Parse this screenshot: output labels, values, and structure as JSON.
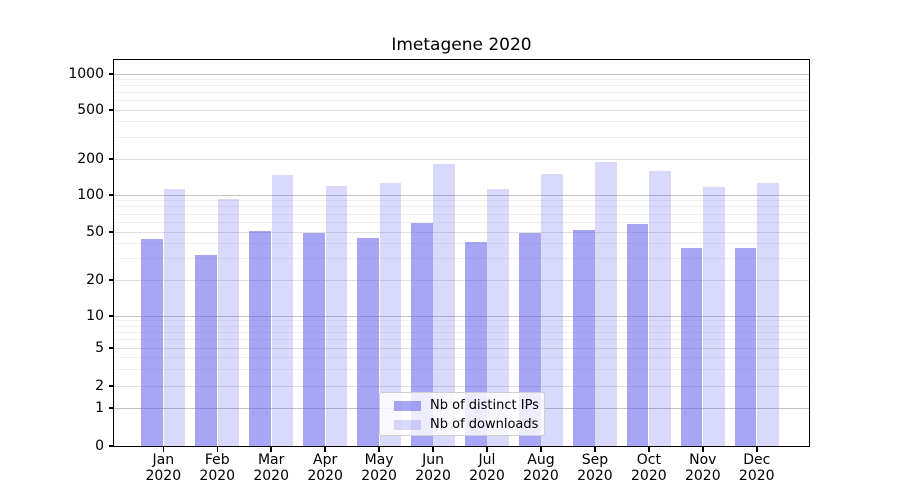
{
  "title": "Imetagene 2020",
  "chart_data": {
    "type": "bar",
    "title": "Imetagene 2020",
    "categories": [
      "Jan",
      "Feb",
      "Mar",
      "Apr",
      "May",
      "Jun",
      "Jul",
      "Aug",
      "Sep",
      "Oct",
      "Nov",
      "Dec"
    ],
    "category_year": "2020",
    "series": [
      {
        "name": "Nb of distinct IPs",
        "color": "#6666ee",
        "alpha": 0.58,
        "values": [
          44,
          32,
          51,
          49,
          45,
          59,
          41,
          49,
          52,
          58,
          37,
          37
        ]
      },
      {
        "name": "Nb of downloads",
        "color": "#6666ee",
        "alpha": 0.25,
        "values": [
          112,
          92,
          147,
          119,
          125,
          181,
          112,
          149,
          190,
          160,
          117,
          125
        ]
      }
    ],
    "xlabel": "",
    "ylabel": "",
    "yscale": "symlog",
    "yticks": [
      0,
      1,
      2,
      5,
      10,
      20,
      50,
      100,
      200,
      500,
      1000
    ],
    "ylim": [
      0,
      1300
    ],
    "grid": true,
    "legend_position": "lower center"
  },
  "legend": {
    "items": [
      {
        "label": "Nb of distinct IPs"
      },
      {
        "label": "Nb of downloads"
      }
    ]
  },
  "colors": {
    "bar_base": "#6666ee",
    "grid_major": "#c2c2c2",
    "grid_labeled": "#dedede",
    "grid_minor": "#efefef",
    "axis": "#000000",
    "legend_border": "#d0d0d0"
  }
}
